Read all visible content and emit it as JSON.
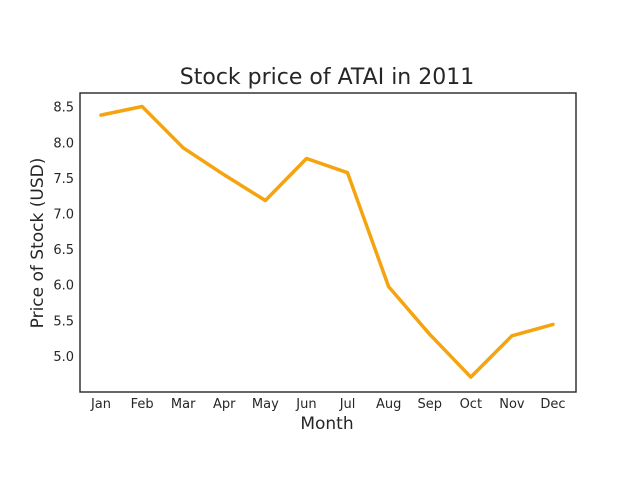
{
  "chart_data": {
    "type": "line",
    "title": "Stock price of ATAI in 2011",
    "xlabel": "Month",
    "ylabel": "Price of Stock (USD)",
    "categories": [
      "Jan",
      "Feb",
      "Mar",
      "Apr",
      "May",
      "Jun",
      "Jul",
      "Aug",
      "Sep",
      "Oct",
      "Nov",
      "Dec"
    ],
    "series": [
      {
        "values": [
          8.39,
          8.51,
          7.93,
          7.55,
          7.19,
          7.78,
          7.58,
          5.98,
          5.31,
          4.71,
          5.29,
          5.45
        ],
        "color": "#f5a30f"
      }
    ],
    "ylim": [
      4.5,
      8.7
    ],
    "yticks": [
      {
        "value": 5.0,
        "label": "5.0"
      },
      {
        "value": 5.5,
        "label": "5.5"
      },
      {
        "value": 6.0,
        "label": "6.0"
      },
      {
        "value": 6.5,
        "label": "6.5"
      },
      {
        "value": 7.0,
        "label": "7.0"
      },
      {
        "value": 7.5,
        "label": "7.5"
      },
      {
        "value": 8.0,
        "label": "8.0"
      },
      {
        "value": 8.5,
        "label": "8.5"
      }
    ],
    "grid": false,
    "legend": "none"
  }
}
